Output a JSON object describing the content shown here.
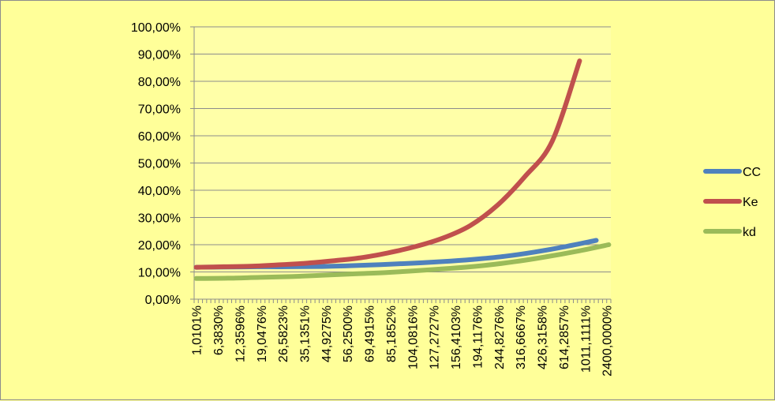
{
  "chart_data": {
    "type": "line",
    "title": "",
    "xlabel": "",
    "ylabel": "",
    "ylim": [
      0,
      100
    ],
    "ytick_labels": [
      "0,00%",
      "10,00%",
      "20,00%",
      "30,00%",
      "40,00%",
      "50,00%",
      "60,00%",
      "70,00%",
      "80,00%",
      "90,00%",
      "100,00%"
    ],
    "yticks": [
      0,
      10,
      20,
      30,
      40,
      50,
      60,
      70,
      80,
      90,
      100
    ],
    "x_tick_labels": [
      "1,0101%",
      "6,3830%",
      "12,3596%",
      "19,0476%",
      "26,5823%",
      "35,1351%",
      "44,9275%",
      "56,2500%",
      "69,4915%",
      "85,1852%",
      "104,0816%",
      "127,2727%",
      "156,4103%",
      "194,1176%",
      "244,8276%",
      "316,6667%",
      "426,3158%",
      "614,2857%",
      "1011,1111%",
      "2400,0000%"
    ],
    "grid": true,
    "legend_position": "right",
    "n_categories": 100,
    "series": [
      {
        "name": "CC",
        "color": "#4f81bd",
        "values": [
          11.7,
          11.8,
          11.9,
          11.9,
          12.0,
          12.3,
          12.7,
          13.2,
          13.8,
          14.6,
          15.7,
          17.3,
          19.3,
          21.6
        ]
      },
      {
        "name": "Ke",
        "color": "#c0504d",
        "values": [
          11.7,
          11.9,
          12.1,
          12.6,
          13.2,
          14.1,
          15.2,
          17.0,
          19.3,
          22.4,
          27.0,
          34.5,
          45.0,
          58.0,
          87.5
        ]
      },
      {
        "name": "kd",
        "color": "#9bbb59",
        "values": [
          7.6,
          7.7,
          8.0,
          8.3,
          8.8,
          9.3,
          9.8,
          10.5,
          11.3,
          12.3,
          13.7,
          15.5,
          17.6,
          20.0
        ]
      }
    ]
  }
}
